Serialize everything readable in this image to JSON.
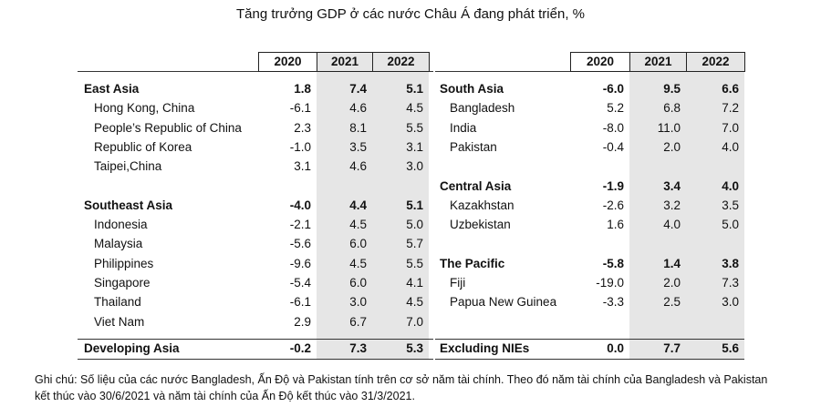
{
  "title": "Tăng trưởng GDP ở các nước Châu Á đang phát triển, %",
  "table": {
    "headers": [
      "2020",
      "2021",
      "2022"
    ],
    "left": {
      "groups": [
        {
          "region": "East Asia",
          "values": [
            "1.8",
            "7.4",
            "5.1"
          ],
          "countries": [
            {
              "name": "Hong Kong, China",
              "values": [
                "-6.1",
                "4.6",
                "4.5"
              ]
            },
            {
              "name": "People’s Republic of China",
              "values": [
                "2.3",
                "8.1",
                "5.5"
              ]
            },
            {
              "name": "Republic of Korea",
              "values": [
                "-1.0",
                "3.5",
                "3.1"
              ]
            },
            {
              "name": "Taipei,China",
              "values": [
                "3.1",
                "4.6",
                "3.0"
              ]
            }
          ]
        },
        {
          "region": "Southeast Asia",
          "values": [
            "-4.0",
            "4.4",
            "5.1"
          ],
          "countries": [
            {
              "name": "Indonesia",
              "values": [
                "-2.1",
                "4.5",
                "5.0"
              ]
            },
            {
              "name": "Malaysia",
              "values": [
                "-5.6",
                "6.0",
                "5.7"
              ]
            },
            {
              "name": "Philippines",
              "values": [
                "-9.6",
                "4.5",
                "5.5"
              ]
            },
            {
              "name": "Singapore",
              "values": [
                "-5.4",
                "6.0",
                "4.1"
              ]
            },
            {
              "name": "Thailand",
              "values": [
                "-6.1",
                "3.0",
                "4.5"
              ]
            },
            {
              "name": "Viet Nam",
              "values": [
                "2.9",
                "6.7",
                "7.0"
              ]
            }
          ]
        }
      ],
      "total": {
        "name": "Developing Asia",
        "values": [
          "-0.2",
          "7.3",
          "5.3"
        ]
      }
    },
    "right": {
      "groups": [
        {
          "region": "South Asia",
          "values": [
            "-6.0",
            "9.5",
            "6.6"
          ],
          "countries": [
            {
              "name": "Bangladesh",
              "values": [
                "5.2",
                "6.8",
                "7.2"
              ]
            },
            {
              "name": "India",
              "values": [
                "-8.0",
                "11.0",
                "7.0"
              ]
            },
            {
              "name": "Pakistan",
              "values": [
                "-0.4",
                "2.0",
                "4.0"
              ]
            }
          ]
        },
        {
          "region": "Central Asia",
          "values": [
            "-1.9",
            "3.4",
            "4.0"
          ],
          "countries": [
            {
              "name": "Kazakhstan",
              "values": [
                "-2.6",
                "3.2",
                "3.5"
              ]
            },
            {
              "name": "Uzbekistan",
              "values": [
                "1.6",
                "4.0",
                "5.0"
              ]
            }
          ]
        },
        {
          "region": "The Pacific",
          "values": [
            "-5.8",
            "1.4",
            "3.8"
          ],
          "countries": [
            {
              "name": "Fiji",
              "values": [
                "-19.0",
                "2.0",
                "7.3"
              ]
            },
            {
              "name": "Papua New Guinea",
              "values": [
                "-3.3",
                "2.5",
                "3.0"
              ]
            }
          ]
        }
      ],
      "total": {
        "name": "Excluding NIEs",
        "values": [
          "0.0",
          "7.7",
          "5.6"
        ]
      }
    }
  },
  "footnote": [
    "Ghi chú: Số liệu của các nước Bangladesh, Ấn Độ và Pakistan tính trên cơ sở năm tài chính. Theo đó năm tài chính của Bangladesh và Pakistan",
    "kết thúc vào 30/6/2021 và năm tài chính của Ấn Độ kết thúc vào 31/3/2021."
  ]
}
